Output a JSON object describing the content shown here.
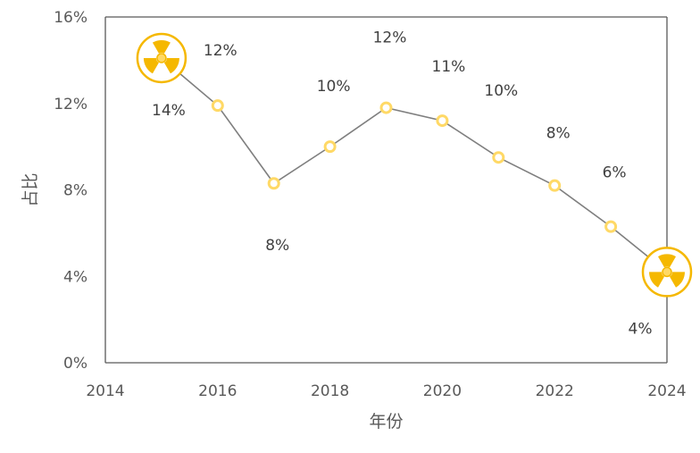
{
  "chart_data": {
    "type": "line",
    "title": "",
    "xlabel": "年份",
    "ylabel": "占比",
    "xlim": [
      2014,
      2024
    ],
    "ylim": [
      0,
      0.16
    ],
    "x_ticks": [
      2014,
      2016,
      2018,
      2020,
      2022,
      2024
    ],
    "x_tick_labels": [
      "2014",
      "2016",
      "2018",
      "2020",
      "2022",
      "2024"
    ],
    "y_ticks": [
      0,
      0.04,
      0.08,
      0.12,
      0.16
    ],
    "y_tick_labels": [
      "0%",
      "4%",
      "8%",
      "12%",
      "16%"
    ],
    "grid": false,
    "legend": "none",
    "series": [
      {
        "x": [
          2015,
          2016,
          2017,
          2018,
          2019,
          2020,
          2021,
          2022,
          2023,
          2024
        ],
        "values": [
          0.141,
          0.119,
          0.083,
          0.1,
          0.118,
          0.112,
          0.095,
          0.082,
          0.063,
          0.042
        ],
        "labels": [
          "14%",
          "12%",
          "8%",
          "10%",
          "12%",
          "11%",
          "10%",
          "8%",
          "6%",
          "4%"
        ]
      }
    ],
    "highlighted_points": [
      2015,
      2024
    ],
    "highlight_icon": "radiation-icon",
    "colors": {
      "line": "#7f7f7f",
      "marker": "#ffd966",
      "highlight": "#f5b800",
      "axis": "#595959"
    }
  }
}
